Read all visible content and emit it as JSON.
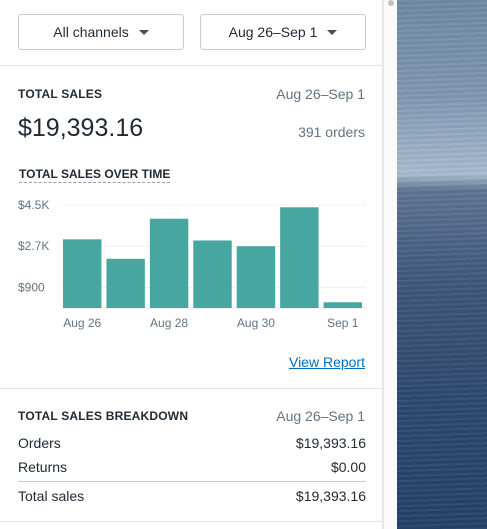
{
  "filters": {
    "channel_label": "All channels",
    "date_label": "Aug 26–Sep 1"
  },
  "total_sales": {
    "title": "TOTAL SALES",
    "range": "Aug 26–Sep 1",
    "value": "$19,393.16",
    "orders": "391 orders",
    "chart_title": "TOTAL SALES OVER TIME",
    "view_report": "View Report"
  },
  "breakdown": {
    "title": "TOTAL SALES BREAKDOWN",
    "range": "Aug 26–Sep 1",
    "rows": [
      {
        "label": "Orders",
        "value": "$19,393.16"
      },
      {
        "label": "Returns",
        "value": "$0.00"
      },
      {
        "label": "Total sales",
        "value": "$19,393.16"
      }
    ]
  },
  "colors": {
    "bar": "#47a69f",
    "link": "#006fbb",
    "muted_text": "#637381"
  },
  "chart_data": {
    "type": "bar",
    "categories": [
      "Aug 26",
      "Aug 27",
      "Aug 28",
      "Aug 29",
      "Aug 30",
      "Aug 31",
      "Sep 1"
    ],
    "x_tick_labels": [
      "Aug 26",
      "Aug 28",
      "Aug 30",
      "Sep 1"
    ],
    "values": [
      3000,
      2150,
      3900,
      2950,
      2700,
      4400,
      250
    ],
    "y_ticks": [
      900,
      2700,
      4500
    ],
    "y_tick_labels": [
      "$900",
      "$2.7K",
      "$4.5K"
    ],
    "ylim": [
      0,
      4500
    ],
    "grid": true,
    "title": "TOTAL SALES OVER TIME",
    "xlabel": "",
    "ylabel": ""
  }
}
